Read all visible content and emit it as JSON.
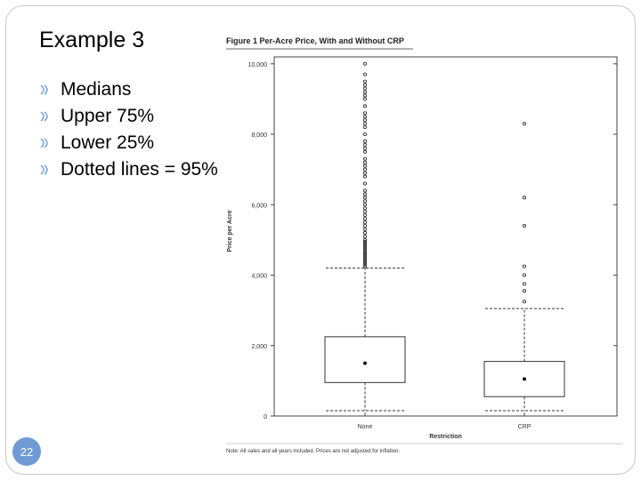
{
  "slide": {
    "title": "Example 3",
    "bullets": [
      "Medians",
      "Upper 75%",
      "Lower 25%",
      "Dotted lines = 95%"
    ],
    "page_number": "22"
  },
  "colors": {
    "page_badge": "#6f9ad4",
    "bullet_icon": "#6f9ad4"
  },
  "chart_data": {
    "type": "boxplot",
    "title": "Figure 1  Per-Acre Price, With and Without CRP",
    "xlabel": "Restriction",
    "ylabel": "Price per Acre",
    "note": "Note: All sales and all years included. Prices are not adjusted for inflation.",
    "ylim": [
      0,
      10500
    ],
    "yticks": [
      0,
      2000,
      4000,
      6000,
      8000,
      10000
    ],
    "ytick_labels": [
      "0",
      "2,000",
      "4,000",
      "6,000",
      "8,000",
      "10,000"
    ],
    "grid": false,
    "categories": [
      "None",
      "CRP"
    ],
    "boxes": [
      {
        "category": "None",
        "whisker_low": 150,
        "q1": 950,
        "median": 1500,
        "q3": 2250,
        "whisker_high": 4200,
        "outliers": [
          4250,
          4300,
          4350,
          4400,
          4450,
          4500,
          4550,
          4600,
          4650,
          4700,
          4750,
          4800,
          4850,
          4900,
          4950,
          5000,
          5100,
          5200,
          5300,
          5400,
          5500,
          5600,
          5700,
          5800,
          5900,
          6000,
          6100,
          6200,
          6300,
          6400,
          6600,
          6800,
          6900,
          7000,
          7100,
          7200,
          7300,
          7500,
          7600,
          7700,
          7800,
          8000,
          8200,
          8300,
          8400,
          8500,
          8600,
          8800,
          9000,
          9100,
          9200,
          9300,
          9400,
          9500,
          9700,
          10000
        ]
      },
      {
        "category": "CRP",
        "whisker_low": 150,
        "q1": 550,
        "median": 1050,
        "q3": 1550,
        "whisker_high": 3050,
        "outliers": [
          3250,
          3550,
          3750,
          4000,
          4250,
          5400,
          6200,
          8300
        ]
      }
    ]
  }
}
